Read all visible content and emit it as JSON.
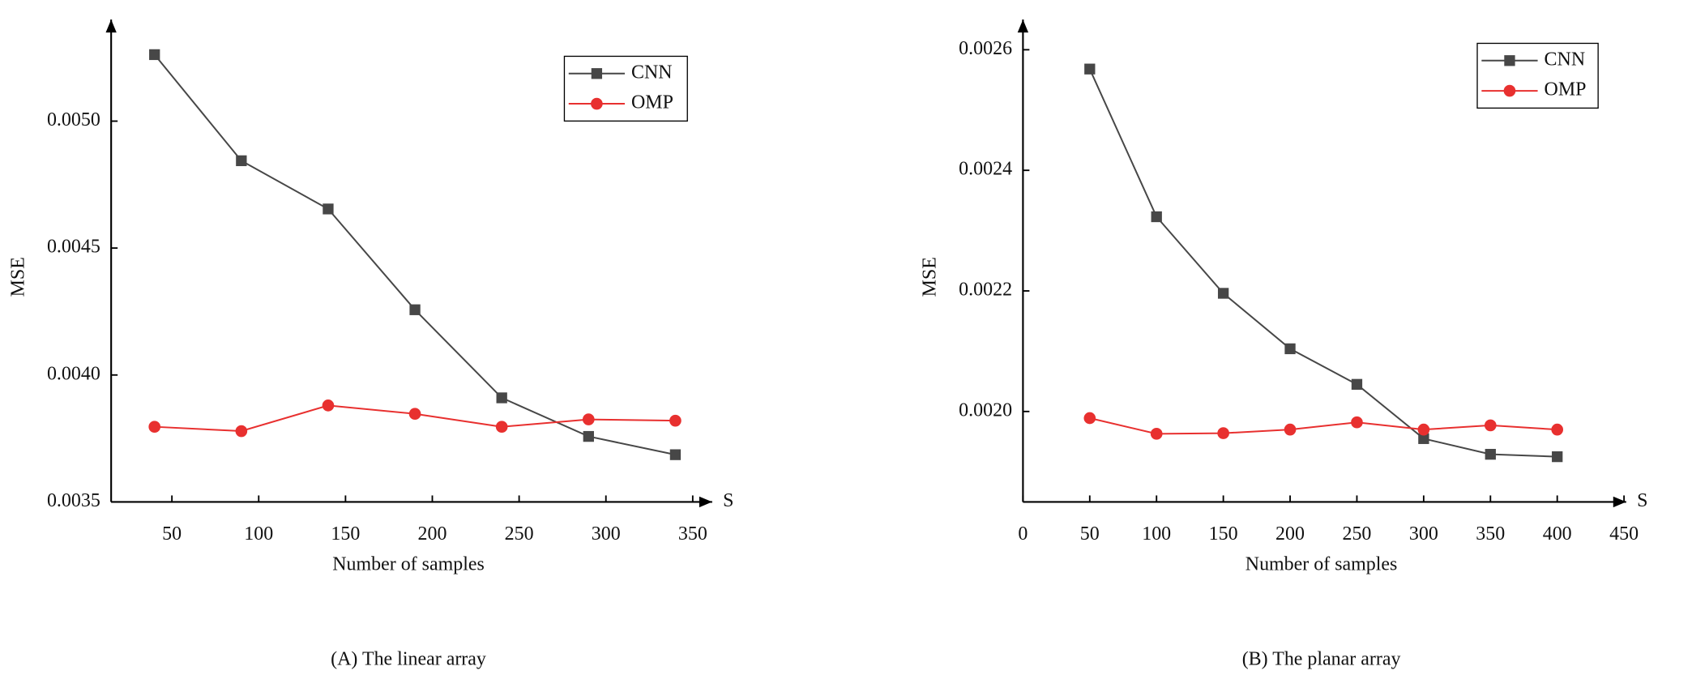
{
  "chart_data": [
    {
      "type": "line",
      "caption": "(A)  The linear array",
      "xlabel": "Number of samples",
      "ylabel": "MSE",
      "axis_end_label": "S",
      "x": [
        40,
        90,
        140,
        190,
        240,
        290,
        340
      ],
      "series": [
        {
          "name": "CNN",
          "color": "#474747",
          "marker": "square",
          "values": [
            0.005262,
            0.004844,
            0.004654,
            0.004257,
            0.00391,
            0.003758,
            0.003686
          ]
        },
        {
          "name": "OMP",
          "color": "#e8302f",
          "marker": "circle",
          "values": [
            0.003796,
            0.003779,
            0.00388,
            0.003847,
            0.003796,
            0.003825,
            0.00382
          ]
        }
      ],
      "xlim": [
        15,
        355
      ],
      "xticks": [
        50,
        100,
        150,
        200,
        250,
        300,
        350
      ],
      "ylim": [
        0.0035,
        0.0054
      ],
      "yticks": [
        {
          "value": 0.0035,
          "label": "0.0035"
        },
        {
          "value": 0.004,
          "label": "0.0040"
        },
        {
          "value": 0.0045,
          "label": "0.0045"
        },
        {
          "value": 0.005,
          "label": "0.0050"
        }
      ],
      "legend": "upper right",
      "grid": false
    },
    {
      "type": "line",
      "caption": "(B)  The planar array",
      "xlabel": "Number of samples",
      "ylabel": "MSE",
      "axis_end_label": "S",
      "x": [
        50,
        100,
        150,
        200,
        250,
        300,
        350,
        400
      ],
      "series": [
        {
          "name": "CNN",
          "color": "#474747",
          "marker": "square",
          "values": [
            0.002568,
            0.002323,
            0.002196,
            0.002104,
            0.002045,
            0.001955,
            0.001929,
            0.001925
          ]
        },
        {
          "name": "OMP",
          "color": "#e8302f",
          "marker": "circle",
          "values": [
            0.001989,
            0.001963,
            0.001964,
            0.00197,
            0.001982,
            0.00197,
            0.001977,
            0.00197
          ]
        }
      ],
      "xlim": [
        0,
        450
      ],
      "xticks": [
        0,
        50,
        100,
        150,
        200,
        250,
        300,
        350,
        400,
        450
      ],
      "ylim": [
        0.00185,
        0.00265
      ],
      "yticks": [
        {
          "value": 0.002,
          "label": "0.0020"
        },
        {
          "value": 0.0022,
          "label": "0.0022"
        },
        {
          "value": 0.0024,
          "label": "0.0024"
        },
        {
          "value": 0.0026,
          "label": "0.0026"
        }
      ],
      "legend": "upper right",
      "grid": false
    }
  ]
}
